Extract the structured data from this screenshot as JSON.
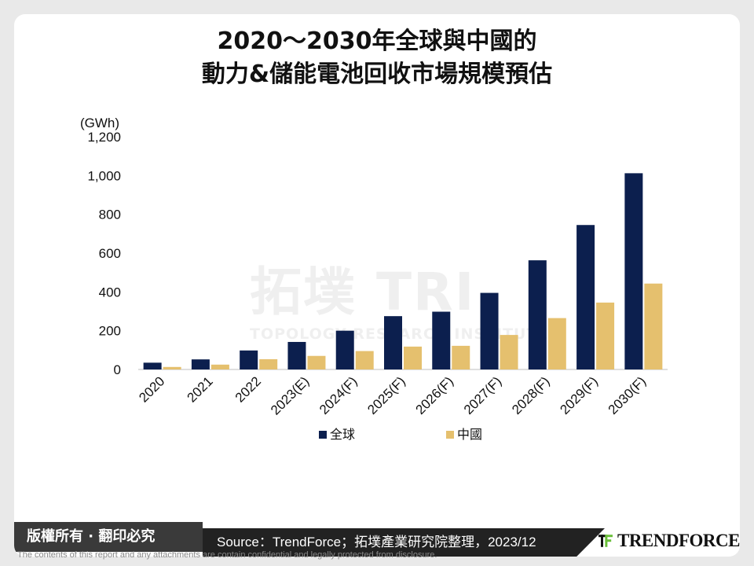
{
  "title": {
    "line1": "2020～2030年全球與中國的",
    "line2": "動力&儲能電池回收市場規模預估"
  },
  "watermark": {
    "big": "拓墣 TRI",
    "small": "TOPOLOGY RESEARCH INSTITUTE"
  },
  "footer": {
    "rights": "版權所有 · 翻印必究",
    "source": "Source：TrendForce；拓墣產業研究院整理，2023/12",
    "logo_text": "TRENDFORCE",
    "disclaimer": "The contents of this report and any attachments are contain confidential and legally protected from disclosure."
  },
  "colors": {
    "global": "#0c1f4e",
    "china": "#e5c06e",
    "logo_green": "#6abf3a",
    "logo_dark": "#111111"
  },
  "chart_data": {
    "type": "bar",
    "title": "2020～2030年全球與中國的動力&儲能電池回收市場規模預估",
    "unit": "(GWh)",
    "categories": [
      "2020",
      "2021",
      "2022",
      "2023(E)",
      "2024(F)",
      "2025(F)",
      "2026(F)",
      "2027(F)",
      "2028(F)",
      "2029(F)",
      "2030(F)"
    ],
    "series": [
      {
        "name": "全球",
        "values": [
          35,
          52,
          98,
          142,
          200,
          275,
          298,
          395,
          563,
          745,
          1012
        ]
      },
      {
        "name": "中國",
        "values": [
          13,
          25,
          53,
          70,
          95,
          118,
          122,
          178,
          265,
          345,
          443
        ]
      }
    ],
    "ylim": [
      0,
      1200
    ],
    "yticks": [
      0,
      200,
      400,
      600,
      800,
      1000,
      1200
    ],
    "ytick_labels": [
      "0",
      "200",
      "400",
      "600",
      "800",
      "1,000",
      "1,200"
    ],
    "legend": "bottom",
    "grid": false
  }
}
